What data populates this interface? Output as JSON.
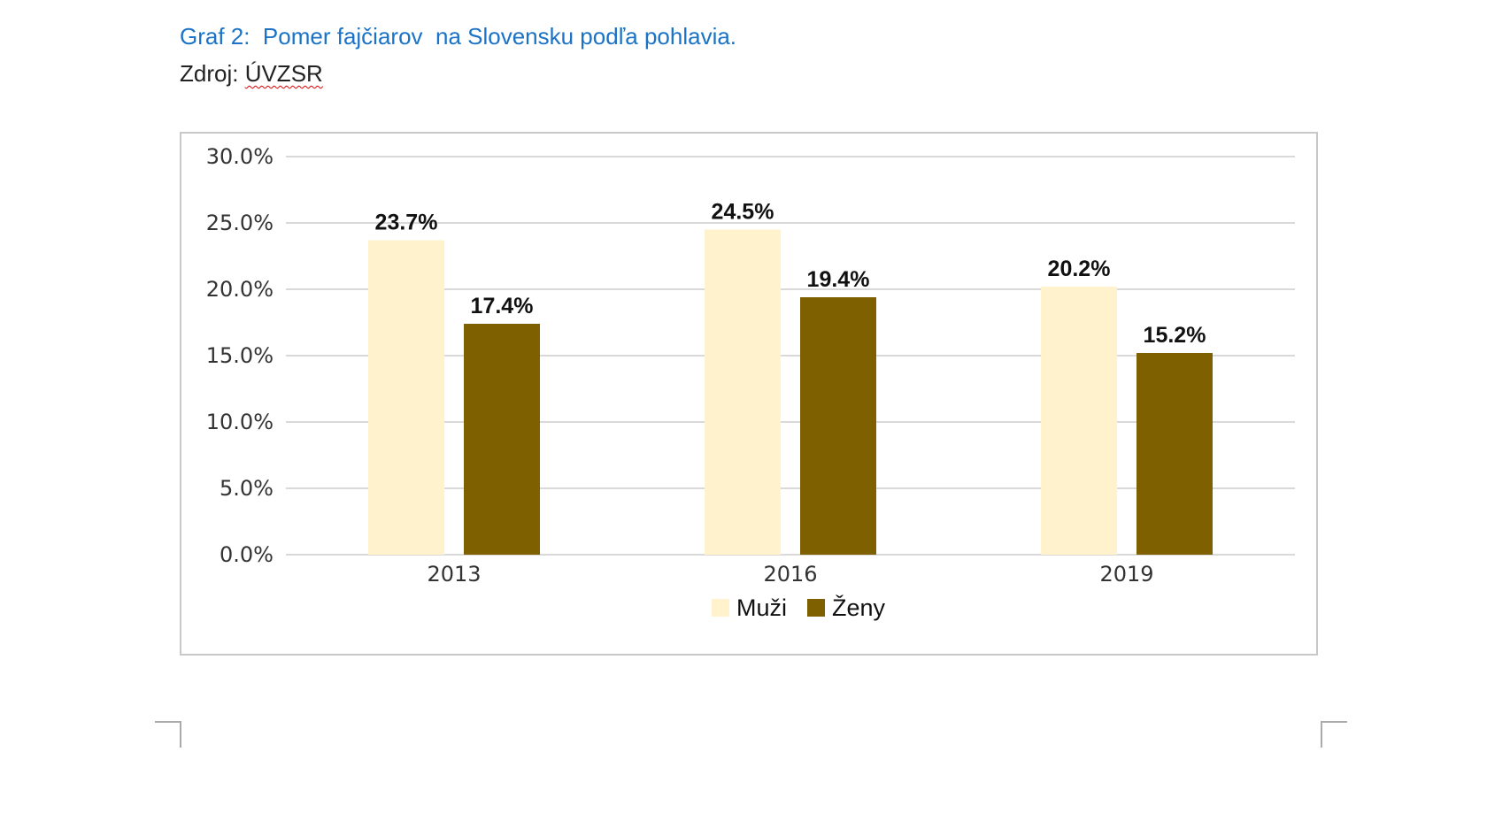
{
  "caption": {
    "title": "Graf 2:  Pomer fajčiarov  na Slovensku podľa pohlavia.",
    "source_prefix": "Zdroj: ",
    "source_name": "ÚVZSR"
  },
  "chart_data": {
    "type": "bar",
    "categories": [
      "2013",
      "2016",
      "2019"
    ],
    "series": [
      {
        "name": "Muži",
        "values": [
          23.7,
          24.5,
          20.2
        ],
        "color": "#fff2cc"
      },
      {
        "name": "Ženy",
        "values": [
          17.4,
          19.4,
          15.2
        ],
        "color": "#7f6000"
      }
    ],
    "value_labels": [
      [
        "23.7%",
        "24.5%",
        "20.2%"
      ],
      [
        "17.4%",
        "19.4%",
        "15.2%"
      ]
    ],
    "y_ticks": [
      "0.0%",
      "5.0%",
      "10.0%",
      "15.0%",
      "20.0%",
      "25.0%",
      "30.0%"
    ],
    "ylim": [
      0,
      30
    ],
    "grid": true,
    "legend_position": "bottom",
    "title": "",
    "xlabel": "",
    "ylabel": ""
  }
}
